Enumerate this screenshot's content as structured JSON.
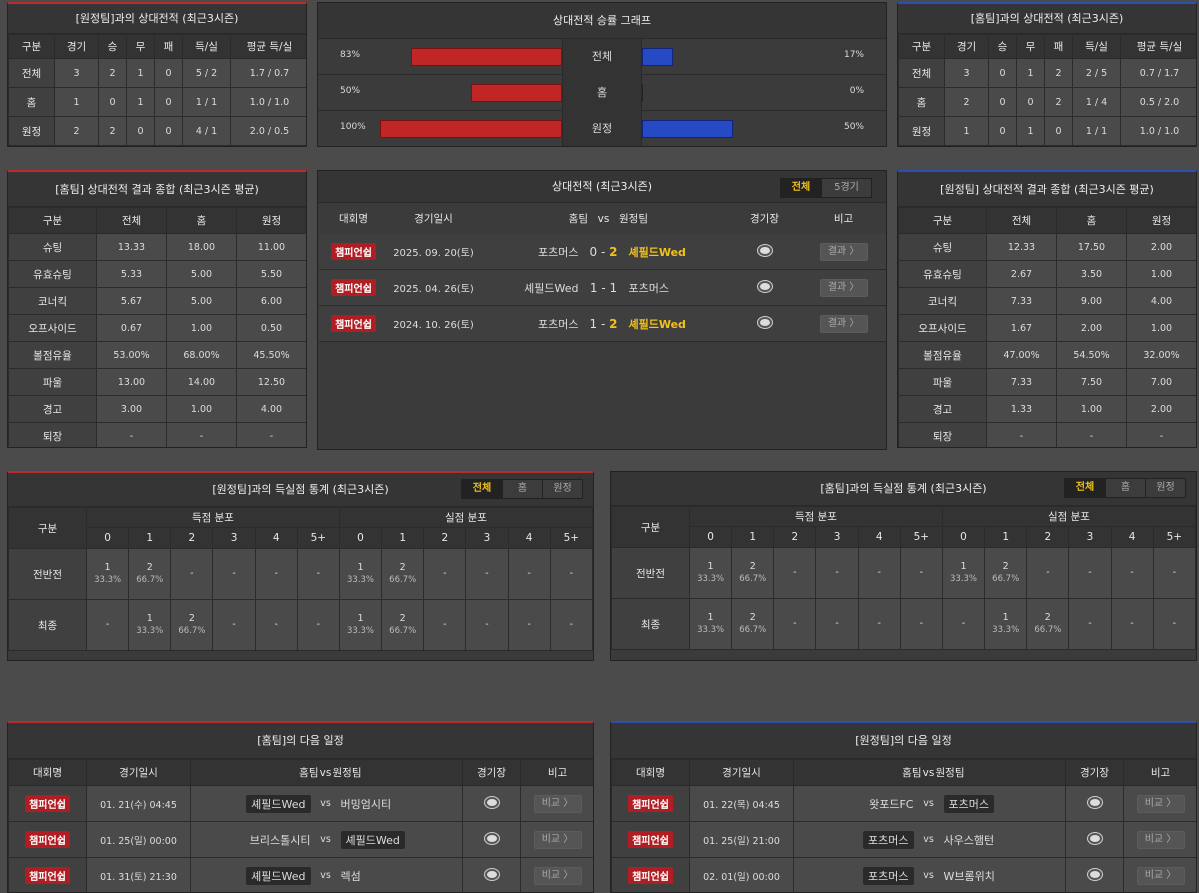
{
  "h2h_away": {
    "title": "[원정팀]과의 상대전적 (최근3시즌)",
    "headers": [
      "구분",
      "경기",
      "승",
      "무",
      "패",
      "득/실",
      "평균 득/실"
    ],
    "rows": [
      [
        "전체",
        "3",
        "2",
        "1",
        "0",
        "5 / 2",
        "1.7 / 0.7"
      ],
      [
        "홈",
        "1",
        "0",
        "1",
        "0",
        "1 / 1",
        "1.0 / 1.0"
      ],
      [
        "원정",
        "2",
        "2",
        "0",
        "0",
        "4 / 1",
        "2.0 / 0.5"
      ]
    ]
  },
  "graph": {
    "title": "상대전적 승률 그래프",
    "rows": [
      {
        "label": "전체",
        "left": "83%",
        "right": "17%",
        "left_val": 83,
        "right_val": 17
      },
      {
        "label": "홈",
        "left": "50%",
        "right": "0%",
        "left_val": 50,
        "right_val": 0
      },
      {
        "label": "원정",
        "left": "100%",
        "right": "50%",
        "left_val": 100,
        "right_val": 50
      }
    ]
  },
  "h2h_home": {
    "title": "[홈팀]과의 상대전적 (최근3시즌)",
    "headers": [
      "구분",
      "경기",
      "승",
      "무",
      "패",
      "득/실",
      "평균 득/실"
    ],
    "rows": [
      [
        "전체",
        "3",
        "0",
        "1",
        "2",
        "2 / 5",
        "0.7 / 1.7"
      ],
      [
        "홈",
        "2",
        "0",
        "0",
        "2",
        "1 / 4",
        "0.5 / 2.0"
      ],
      [
        "원정",
        "1",
        "0",
        "1",
        "0",
        "1 / 1",
        "1.0 / 1.0"
      ]
    ]
  },
  "summary_home": {
    "title": "[홈팀] 상대전적 결과 종합 (최근3시즌 평균)",
    "headers": [
      "구분",
      "전체",
      "홈",
      "원정"
    ],
    "rows": [
      [
        "슈팅",
        "13.33",
        "18.00",
        "11.00"
      ],
      [
        "유효슈팅",
        "5.33",
        "5.00",
        "5.50"
      ],
      [
        "코너킥",
        "5.67",
        "5.00",
        "6.00"
      ],
      [
        "오프사이드",
        "0.67",
        "1.00",
        "0.50"
      ],
      [
        "볼점유율",
        "53.00%",
        "68.00%",
        "45.50%"
      ],
      [
        "파울",
        "13.00",
        "14.00",
        "12.50"
      ],
      [
        "경고",
        "3.00",
        "1.00",
        "4.00"
      ],
      [
        "퇴장",
        "-",
        "-",
        "-"
      ]
    ]
  },
  "recent": {
    "title": "상대전적 (최근3시즌)",
    "tabs": [
      "전체",
      "5경기"
    ],
    "headers": {
      "league": "대회명",
      "date": "경기일시",
      "home": "홈팀",
      "vs": "vs",
      "away": "원정팀",
      "venue": "경기장",
      "note": "비고"
    },
    "matches": [
      {
        "league": "챔피언쉽",
        "date": "2025. 09. 20(토)",
        "home": "포츠머스",
        "hs": "0",
        "as": "2",
        "away": "셰필드Wed",
        "away_win": true,
        "btn": "결과 〉"
      },
      {
        "league": "챔피언쉽",
        "date": "2025. 04. 26(토)",
        "home": "셰필드Wed",
        "hs": "1",
        "as": "1",
        "away": "포츠머스",
        "away_win": false,
        "btn": "결과 〉"
      },
      {
        "league": "챔피언쉽",
        "date": "2024. 10. 26(토)",
        "home": "포츠머스",
        "hs": "1",
        "as": "2",
        "away": "셰필드Wed",
        "away_win": true,
        "btn": "결과 〉"
      }
    ]
  },
  "summary_away": {
    "title": "[원정팀] 상대전적 결과 종합 (최근3시즌 평균)",
    "headers": [
      "구분",
      "전체",
      "홈",
      "원정"
    ],
    "rows": [
      [
        "슈팅",
        "12.33",
        "17.50",
        "2.00"
      ],
      [
        "유효슈팅",
        "2.67",
        "3.50",
        "1.00"
      ],
      [
        "코너킥",
        "7.33",
        "9.00",
        "4.00"
      ],
      [
        "오프사이드",
        "1.67",
        "2.00",
        "1.00"
      ],
      [
        "볼점유율",
        "47.00%",
        "54.50%",
        "32.00%"
      ],
      [
        "파울",
        "7.33",
        "7.50",
        "7.00"
      ],
      [
        "경고",
        "1.33",
        "1.00",
        "2.00"
      ],
      [
        "퇴장",
        "-",
        "-",
        "-"
      ]
    ]
  },
  "goals_left": {
    "title": "[원정팀]과의 득실점 통계 (최근3시즌)",
    "tabs": [
      "전체",
      "홈",
      "원정"
    ],
    "gubun": "구분",
    "scored": "득점 분포",
    "conceded": "실점 분포",
    "cols": [
      "0",
      "1",
      "2",
      "3",
      "4",
      "5+"
    ],
    "rows": [
      {
        "label": "전반전",
        "cells": [
          [
            "1",
            "33.3%"
          ],
          [
            "2",
            "66.7%"
          ],
          [
            "-",
            ""
          ],
          [
            "-",
            ""
          ],
          [
            "-",
            ""
          ],
          [
            "-",
            ""
          ],
          [
            "1",
            "33.3%"
          ],
          [
            "2",
            "66.7%"
          ],
          [
            "-",
            ""
          ],
          [
            "-",
            ""
          ],
          [
            "-",
            ""
          ],
          [
            "-",
            ""
          ]
        ]
      },
      {
        "label": "최종",
        "cells": [
          [
            "-",
            ""
          ],
          [
            "1",
            "33.3%"
          ],
          [
            "2",
            "66.7%"
          ],
          [
            "-",
            ""
          ],
          [
            "-",
            ""
          ],
          [
            "-",
            ""
          ],
          [
            "1",
            "33.3%"
          ],
          [
            "2",
            "66.7%"
          ],
          [
            "-",
            ""
          ],
          [
            "-",
            ""
          ],
          [
            "-",
            ""
          ],
          [
            "-",
            ""
          ]
        ]
      }
    ]
  },
  "goals_right": {
    "title": "[홈팀]과의 득실점 통계 (최근3시즌)",
    "tabs": [
      "전체",
      "홈",
      "원정"
    ],
    "gubun": "구분",
    "scored": "득점 분포",
    "conceded": "실점 분포",
    "cols": [
      "0",
      "1",
      "2",
      "3",
      "4",
      "5+"
    ],
    "rows": [
      {
        "label": "전반전",
        "cells": [
          [
            "1",
            "33.3%"
          ],
          [
            "2",
            "66.7%"
          ],
          [
            "-",
            ""
          ],
          [
            "-",
            ""
          ],
          [
            "-",
            ""
          ],
          [
            "-",
            ""
          ],
          [
            "1",
            "33.3%"
          ],
          [
            "2",
            "66.7%"
          ],
          [
            "-",
            ""
          ],
          [
            "-",
            ""
          ],
          [
            "-",
            ""
          ],
          [
            "-",
            ""
          ]
        ]
      },
      {
        "label": "최종",
        "cells": [
          [
            "1",
            "33.3%"
          ],
          [
            "2",
            "66.7%"
          ],
          [
            "-",
            ""
          ],
          [
            "-",
            ""
          ],
          [
            "-",
            ""
          ],
          [
            "-",
            ""
          ],
          [
            "-",
            ""
          ],
          [
            "1",
            "33.3%"
          ],
          [
            "2",
            "66.7%"
          ],
          [
            "-",
            ""
          ],
          [
            "-",
            ""
          ],
          [
            "-",
            ""
          ]
        ]
      }
    ]
  },
  "next_home": {
    "title": "[홈팀]의 다음 일정",
    "headers": {
      "league": "대회명",
      "date": "경기일시",
      "home": "홈팀",
      "vs": "vs",
      "away": "원정팀",
      "venue": "경기장",
      "note": "비고"
    },
    "matches": [
      {
        "league": "챔피언쉽",
        "date": "01. 21(수) 04:45",
        "home": "셰필드Wed",
        "away": "버밍엄시티",
        "boxed": "home",
        "btn": "비교 〉"
      },
      {
        "league": "챔피언쉽",
        "date": "01. 25(일) 00:00",
        "home": "브리스톨시티",
        "away": "셰필드Wed",
        "boxed": "away",
        "btn": "비교 〉"
      },
      {
        "league": "챔피언쉽",
        "date": "01. 31(토) 21:30",
        "home": "셰필드Wed",
        "away": "렉섬",
        "boxed": "home",
        "btn": "비교 〉"
      }
    ]
  },
  "next_away": {
    "title": "[원정팀]의 다음 일정",
    "headers": {
      "league": "대회명",
      "date": "경기일시",
      "home": "홈팀",
      "vs": "vs",
      "away": "원정팀",
      "venue": "경기장",
      "note": "비고"
    },
    "matches": [
      {
        "league": "챔피언쉽",
        "date": "01. 22(목) 04:45",
        "home": "왓포드FC",
        "away": "포츠머스",
        "boxed": "away",
        "btn": "비교 〉"
      },
      {
        "league": "챔피언쉽",
        "date": "01. 25(일) 21:00",
        "home": "포츠머스",
        "away": "사우스햄턴",
        "boxed": "home",
        "btn": "비교 〉"
      },
      {
        "league": "챔피언쉽",
        "date": "02. 01(일) 00:00",
        "home": "포츠머스",
        "away": "W브롬위치",
        "boxed": "home",
        "btn": "비교 〉"
      }
    ]
  }
}
